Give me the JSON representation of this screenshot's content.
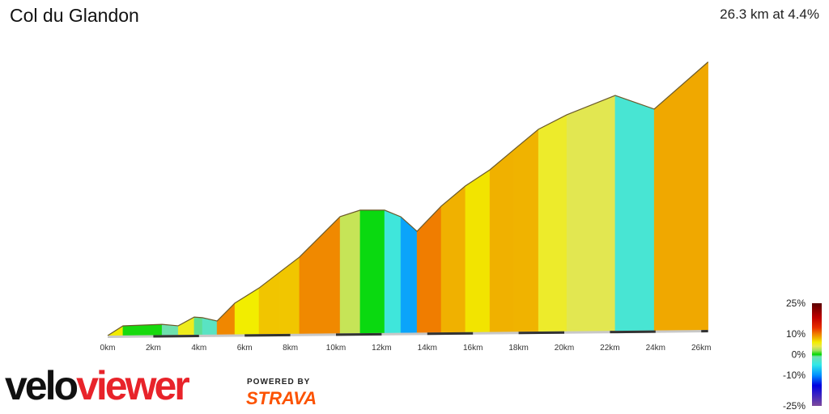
{
  "header": {
    "title": "Col du Glandon",
    "summary": "26.3 km at 4.4%"
  },
  "chart_data": {
    "type": "area",
    "title": "Col du Glandon",
    "xlabel": "",
    "ylabel": "",
    "x_unit": "km",
    "xlim": [
      0,
      26.3
    ],
    "x_ticks": [
      "0km",
      "2km",
      "4km",
      "6km",
      "8km",
      "10km",
      "12km",
      "14km",
      "16km",
      "18km",
      "20km",
      "22km",
      "24km",
      "26km"
    ],
    "color_by": "gradient %",
    "points": [
      [
        0,
        770
      ],
      [
        0.67,
        811
      ],
      [
        2.38,
        816
      ],
      [
        3.09,
        809
      ],
      [
        3.79,
        846
      ],
      [
        4.15,
        843
      ],
      [
        4.79,
        828
      ],
      [
        5.57,
        904
      ],
      [
        6.63,
        968
      ],
      [
        7.52,
        1034
      ],
      [
        8.4,
        1099
      ],
      [
        10.18,
        1271
      ],
      [
        11.06,
        1298
      ],
      [
        12.13,
        1297
      ],
      [
        12.84,
        1268
      ],
      [
        13.55,
        1205
      ],
      [
        14.61,
        1312
      ],
      [
        15.67,
        1398
      ],
      [
        16.74,
        1466
      ],
      [
        17.8,
        1552
      ],
      [
        18.87,
        1638
      ],
      [
        20.11,
        1699
      ],
      [
        22.23,
        1780
      ],
      [
        23.94,
        1720
      ],
      [
        26.3,
        1920
      ]
    ],
    "legend": {
      "labels": [
        "25%",
        "10%",
        "0%",
        "-10%",
        "-25%"
      ],
      "placement": "bottom-right"
    }
  },
  "scale_colors": [
    [
      -25,
      "#7d4a9c"
    ],
    [
      -15,
      "#0000e0"
    ],
    [
      -10,
      "#0090ff"
    ],
    [
      -5,
      "#30e8e8"
    ],
    [
      -1,
      "#70e0b0"
    ],
    [
      0,
      "#00d800"
    ],
    [
      2,
      "#a0e060"
    ],
    [
      4,
      "#e8e850"
    ],
    [
      6,
      "#f2ee00"
    ],
    [
      8,
      "#f0b400"
    ],
    [
      10,
      "#f08000"
    ],
    [
      13,
      "#e83000"
    ],
    [
      18,
      "#c00000"
    ],
    [
      25,
      "#5a0000"
    ]
  ],
  "branding": {
    "velo": "velo",
    "viewer": "viewer",
    "powered": "POWERED BY",
    "strava": "STRAVA"
  }
}
